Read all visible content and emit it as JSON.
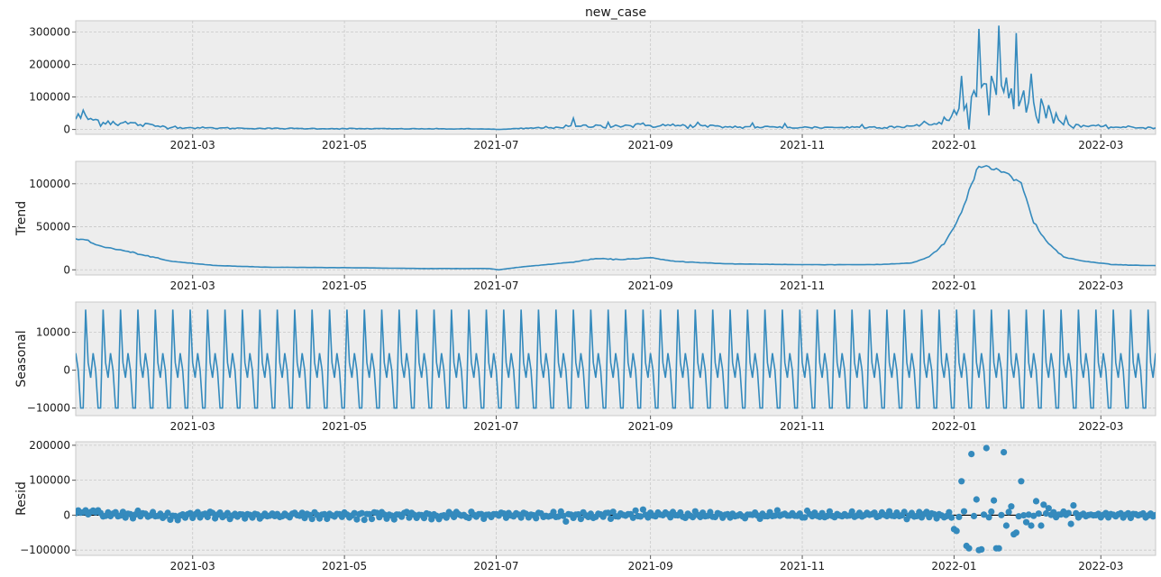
{
  "chart_data": {
    "type": "line",
    "title": "new_case",
    "x_range": [
      "2021-01-13",
      "2022-03-23"
    ],
    "x_ticks": [
      "2021-03",
      "2021-05",
      "2021-07",
      "2021-09",
      "2021-11",
      "2022-01",
      "2022-03"
    ],
    "x_tick_dates": [
      "2021-03-01",
      "2021-05-01",
      "2021-07-01",
      "2021-09-01",
      "2021-11-01",
      "2022-01-01",
      "2022-03-01"
    ],
    "grid": true,
    "colors": {
      "series": "#348abd",
      "background": "#ededed",
      "zero_line": "#000000"
    },
    "panels": [
      {
        "key": "observed",
        "ylabel": "",
        "type": "line",
        "ylim": [
          -15000,
          335000
        ],
        "y_ticks": [
          0,
          100000,
          200000,
          300000
        ],
        "keypoints": [
          [
            "2021-01-13",
            35000
          ],
          [
            "2021-01-16",
            42000
          ],
          [
            "2021-01-20",
            28000
          ],
          [
            "2021-02-01",
            20000
          ],
          [
            "2021-02-15",
            10000
          ],
          [
            "2021-03-01",
            5000
          ],
          [
            "2021-04-01",
            3000
          ],
          [
            "2021-05-01",
            2500
          ],
          [
            "2021-06-01",
            2000
          ],
          [
            "2021-06-28",
            1500
          ],
          [
            "2021-07-02",
            0
          ],
          [
            "2021-07-15",
            4000
          ],
          [
            "2021-08-01",
            9000
          ],
          [
            "2021-08-20",
            12000
          ],
          [
            "2021-09-05",
            13000
          ],
          [
            "2021-10-01",
            8000
          ],
          [
            "2021-11-01",
            6000
          ],
          [
            "2021-12-01",
            7000
          ],
          [
            "2021-12-20",
            12000
          ],
          [
            "2021-12-28",
            25000
          ],
          [
            "2022-01-05",
            60000
          ],
          [
            "2022-01-12",
            110000
          ],
          [
            "2022-01-20",
            120000
          ],
          [
            "2022-01-28",
            100000
          ],
          [
            "2022-02-05",
            45000
          ],
          [
            "2022-02-15",
            15000
          ],
          [
            "2022-03-01",
            8000
          ],
          [
            "2022-03-23",
            5000
          ]
        ],
        "noise": 0.5,
        "spikes": [
          [
            "2021-08-01",
            35000
          ],
          [
            "2021-08-15",
            22000
          ],
          [
            "2021-09-20",
            22000
          ],
          [
            "2021-10-12",
            20000
          ],
          [
            "2021-10-25",
            18000
          ],
          [
            "2021-11-25",
            15000
          ],
          [
            "2021-12-20",
            25000
          ],
          [
            "2022-01-01",
            60000
          ],
          [
            "2022-01-04",
            165000
          ],
          [
            "2022-01-08",
            100000
          ],
          [
            "2022-01-11",
            310000
          ],
          [
            "2022-01-14",
            140000
          ],
          [
            "2022-01-16",
            165000
          ],
          [
            "2022-01-19",
            320000
          ],
          [
            "2022-01-22",
            160000
          ],
          [
            "2022-01-26",
            297000
          ],
          [
            "2022-01-29",
            120000
          ],
          [
            "2022-02-01",
            172000
          ],
          [
            "2022-02-05",
            95000
          ],
          [
            "2022-02-08",
            75000
          ],
          [
            "2022-02-11",
            50000
          ],
          [
            "2022-02-15",
            40000
          ]
        ]
      },
      {
        "key": "trend",
        "ylabel": "Trend",
        "type": "line",
        "ylim": [
          -6000,
          126000
        ],
        "y_ticks": [
          0,
          50000,
          100000
        ],
        "keypoints": [
          [
            "2021-01-16",
            36000
          ],
          [
            "2021-01-22",
            28000
          ],
          [
            "2021-02-05",
            20000
          ],
          [
            "2021-02-20",
            10000
          ],
          [
            "2021-03-10",
            5000
          ],
          [
            "2021-04-01",
            3000
          ],
          [
            "2021-05-01",
            2500
          ],
          [
            "2021-06-01",
            1500
          ],
          [
            "2021-06-28",
            1500
          ],
          [
            "2021-07-02",
            0
          ],
          [
            "2021-07-10",
            3000
          ],
          [
            "2021-08-01",
            9000
          ],
          [
            "2021-08-10",
            13000
          ],
          [
            "2021-08-20",
            12000
          ],
          [
            "2021-09-01",
            14000
          ],
          [
            "2021-09-10",
            10000
          ],
          [
            "2021-10-01",
            7000
          ],
          [
            "2021-11-01",
            6000
          ],
          [
            "2021-12-01",
            6000
          ],
          [
            "2021-12-15",
            8000
          ],
          [
            "2021-12-22",
            15000
          ],
          [
            "2021-12-28",
            30000
          ],
          [
            "2022-01-04",
            65000
          ],
          [
            "2022-01-08",
            100000
          ],
          [
            "2022-01-11",
            120000
          ],
          [
            "2022-01-15",
            120000
          ],
          [
            "2022-01-22",
            110000
          ],
          [
            "2022-01-28",
            100000
          ],
          [
            "2022-02-02",
            55000
          ],
          [
            "2022-02-08",
            30000
          ],
          [
            "2022-02-14",
            15000
          ],
          [
            "2022-02-22",
            10000
          ],
          [
            "2022-03-06",
            6000
          ],
          [
            "2022-03-20",
            5000
          ]
        ],
        "noise": 0.03,
        "spikes": []
      },
      {
        "key": "seasonal",
        "ylabel": "Seasonal",
        "type": "line",
        "ylim": [
          -12000,
          18000
        ],
        "y_ticks": [
          -10000,
          0,
          10000
        ],
        "period_days": 7,
        "weekly_pattern": [
          4500,
          0,
          -10000,
          -10000,
          16000,
          2000,
          -2000
        ]
      },
      {
        "key": "resid",
        "ylabel": "Resid",
        "type": "scatter",
        "ylim": [
          -115000,
          210000
        ],
        "y_ticks": [
          -100000,
          0,
          100000,
          200000
        ],
        "base_scale": 9000,
        "zero_line": true,
        "outliers": [
          [
            "2022-01-01",
            -40000
          ],
          [
            "2022-01-02",
            -45000
          ],
          [
            "2022-01-04",
            97000
          ],
          [
            "2022-01-06",
            -88000
          ],
          [
            "2022-01-07",
            -95000
          ],
          [
            "2022-01-08",
            175000
          ],
          [
            "2022-01-10",
            45000
          ],
          [
            "2022-01-11",
            -100000
          ],
          [
            "2022-01-12",
            -98000
          ],
          [
            "2022-01-14",
            192000
          ],
          [
            "2022-01-16",
            10000
          ],
          [
            "2022-01-17",
            42000
          ],
          [
            "2022-01-18",
            -95000
          ],
          [
            "2022-01-19",
            -95000
          ],
          [
            "2022-01-21",
            180000
          ],
          [
            "2022-01-22",
            -30000
          ],
          [
            "2022-01-24",
            25000
          ],
          [
            "2022-01-25",
            -55000
          ],
          [
            "2022-01-26",
            -50000
          ],
          [
            "2022-01-28",
            97000
          ],
          [
            "2022-01-30",
            -20000
          ],
          [
            "2022-02-01",
            -30000
          ],
          [
            "2022-02-03",
            40000
          ],
          [
            "2022-02-05",
            -30000
          ],
          [
            "2022-02-06",
            30000
          ],
          [
            "2022-02-08",
            20000
          ],
          [
            "2022-02-14",
            10000
          ],
          [
            "2022-02-17",
            -25000
          ],
          [
            "2022-02-18",
            28000
          ]
        ]
      }
    ]
  }
}
